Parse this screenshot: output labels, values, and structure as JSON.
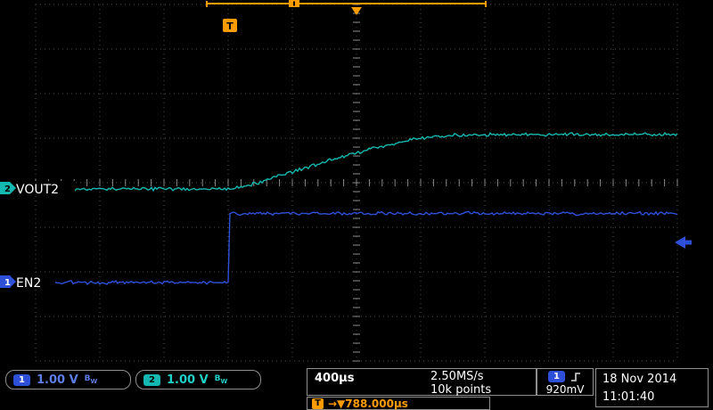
{
  "display": {
    "ch1_label": "EN2",
    "ch2_label": "VOUT2",
    "ch1_marker": "1",
    "ch2_marker": "2",
    "trigger_badge": "T"
  },
  "status_bar": {
    "ch1": {
      "badge": "1",
      "scale": "1.00 V",
      "bw_main": "B",
      "bw_sub": "W"
    },
    "ch2": {
      "badge": "2",
      "scale": "1.00 V",
      "bw_main": "B",
      "bw_sub": "W"
    },
    "timebase": "400µs",
    "sample_rate": "2.50MS/s",
    "record_length": "10k points",
    "trigger": {
      "badge": "T",
      "readout": "→▼788.000µs"
    },
    "trigger_source": {
      "badge": "1",
      "level": "920mV"
    },
    "date": "18 Nov 2014",
    "time": "11:01:40"
  },
  "colors": {
    "ch1": "#2e50d8",
    "ch1_text": "#5d7de8",
    "ch2": "#14b8b0",
    "ch2_text": "#1fd0c8",
    "trigger_orange": "#ff9c00",
    "grid": "#4d4d4d",
    "background": "#000000"
  },
  "chart_data": {
    "type": "line",
    "instrument": "oscilloscope",
    "title": "",
    "x_units": "µs",
    "y_units": "V",
    "timebase": "400µs/div",
    "horizontal_divisions": 10,
    "vertical_divisions": 8,
    "sample_rate": "2.50MS/s",
    "record_length": "10k points",
    "trigger": {
      "source": "CH1",
      "level": "920mV",
      "slope": "rising",
      "delay": "788.000µs"
    },
    "series": [
      {
        "name": "EN2",
        "channel": 1,
        "volts_per_div": 1.0,
        "color": "#2e50d8",
        "t_us": [
          -1250,
          -2,
          0,
          2800
        ],
        "v": [
          0,
          0,
          1.55,
          1.55
        ]
      },
      {
        "name": "VOUT2",
        "channel": 2,
        "volts_per_div": 1.0,
        "color": "#14b8b0",
        "t_us": [
          -1250,
          -20,
          100,
          300,
          600,
          900,
          1100,
          1250,
          1400,
          2800
        ],
        "v": [
          0,
          0,
          0.06,
          0.28,
          0.62,
          0.92,
          1.08,
          1.17,
          1.22,
          1.22
        ]
      }
    ]
  }
}
